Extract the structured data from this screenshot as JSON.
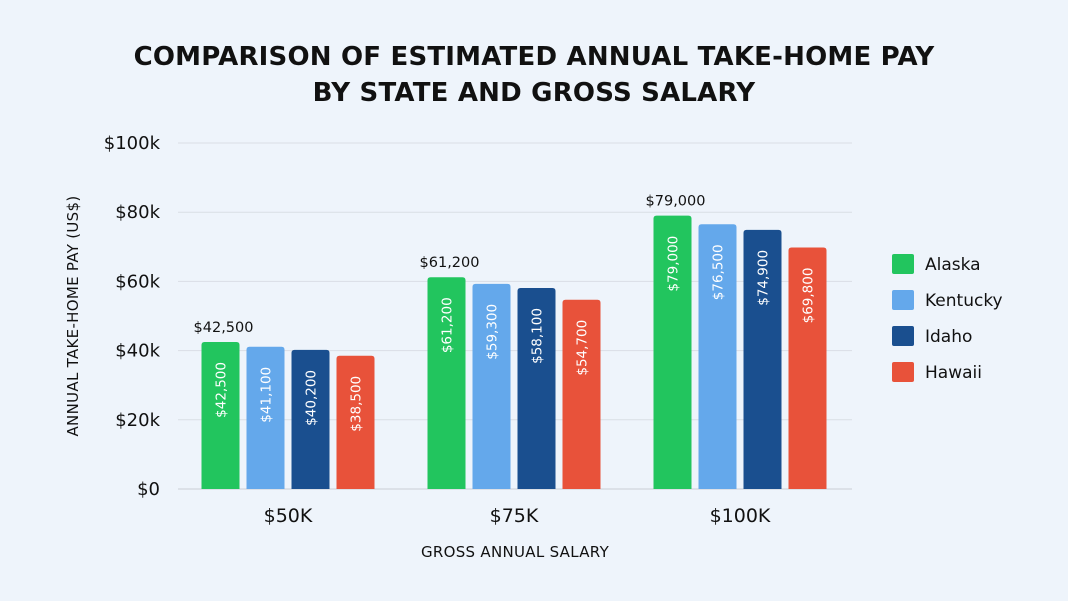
{
  "chart_data": {
    "type": "bar",
    "title_lines": [
      "COMPARISON OF ESTIMATED ANNUAL TAKE-HOME PAY",
      "BY STATE AND GROSS SALARY"
    ],
    "xlabel": "GROSS ANNUAL SALARY",
    "ylabel": "ANNUAL TAKE-HOME PAY (US$)",
    "categories": [
      "$50K",
      "$75K",
      "$100K"
    ],
    "ylim": [
      0,
      100000
    ],
    "yticks": [
      0,
      20000,
      40000,
      60000,
      80000,
      100000
    ],
    "ytick_labels": [
      "$0",
      "$20k",
      "$40k",
      "$60k",
      "$80k",
      "$100k"
    ],
    "grid": true,
    "legend_position": "right",
    "series": [
      {
        "name": "Alaska",
        "color": "#22c55e",
        "values": [
          42500,
          61200,
          79000
        ],
        "labels": [
          "$42,500",
          "$61,200",
          "$79,000"
        ]
      },
      {
        "name": "Kentucky",
        "color": "#64a8eb",
        "values": [
          41100,
          59300,
          76500
        ],
        "labels": [
          "$41,100",
          "$59,300",
          "$76,500"
        ]
      },
      {
        "name": "Idaho",
        "color": "#1a4f8f",
        "values": [
          40200,
          58100,
          74900
        ],
        "labels": [
          "$40,200",
          "$58,100",
          "$74,900"
        ]
      },
      {
        "name": "Hawaii",
        "color": "#e8523a",
        "values": [
          38500,
          54700,
          69800
        ],
        "labels": [
          "$38,500",
          "$54,700",
          "$69,800"
        ]
      }
    ],
    "top_labels": [
      "$42,500",
      "$61,200",
      "$79,000"
    ]
  }
}
